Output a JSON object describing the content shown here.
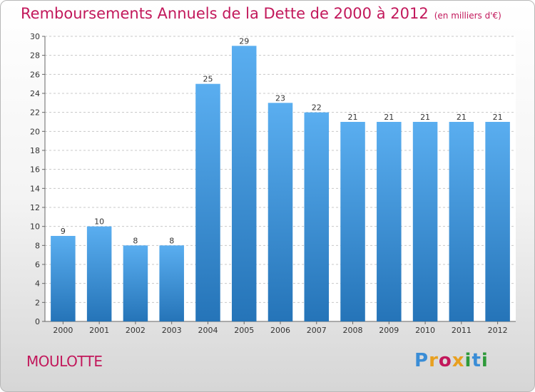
{
  "chart_data": {
    "type": "bar",
    "title": "Remboursements Annuels de la Dette de 2000 à 2012",
    "subtitle": "(en milliers d'€)",
    "categories": [
      "2000",
      "2001",
      "2002",
      "2003",
      "2004",
      "2005",
      "2006",
      "2007",
      "2008",
      "2009",
      "2010",
      "2011",
      "2012"
    ],
    "values": [
      9,
      10,
      8,
      8,
      25,
      29,
      23,
      22,
      21,
      21,
      21,
      21,
      21
    ],
    "ylim": [
      0,
      30
    ],
    "yticks": [
      0,
      2,
      4,
      6,
      8,
      10,
      12,
      14,
      16,
      18,
      20,
      22,
      24,
      26,
      28,
      30
    ],
    "grid": true,
    "bar_color": "#3f92d6",
    "legend": "none"
  },
  "footer": {
    "town": "MOULOTTE",
    "logo_text": "Proxiti",
    "logo_colors": [
      "#3a8dd6",
      "#e8a020",
      "#c2185b",
      "#e8a020",
      "#2e9a3a",
      "#3a8dd6",
      "#2e9a3a"
    ]
  },
  "colors": {
    "title": "#c2185b"
  }
}
